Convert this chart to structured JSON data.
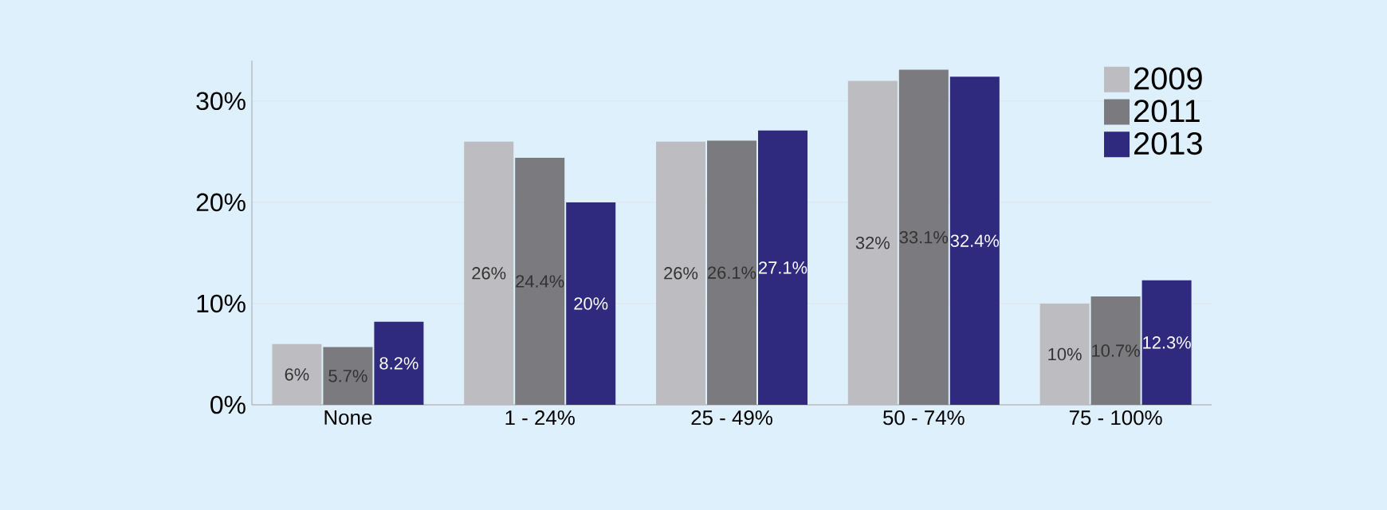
{
  "chart_data": {
    "type": "bar",
    "categories": [
      "None",
      "1 - 24%",
      "25 - 49%",
      "50 - 74%",
      "75 - 100%"
    ],
    "series": [
      {
        "name": "2009",
        "color": "#bdbdc1",
        "values": [
          6,
          26,
          26,
          32,
          10
        ],
        "value_labels": [
          "6%",
          "26%",
          "26%",
          "32%",
          "10%"
        ]
      },
      {
        "name": "2011",
        "color": "#7b7b7f",
        "values": [
          5.7,
          24.4,
          26.1,
          33.1,
          10.7
        ],
        "value_labels": [
          "5.7%",
          "24.4%",
          "26.1%",
          "33.1%",
          "10.7%"
        ]
      },
      {
        "name": "2013",
        "color": "#2f2a7d",
        "values": [
          8.2,
          20,
          27.1,
          32.4,
          12.3
        ],
        "value_labels": [
          "8.2%",
          "20%",
          "27.1%",
          "32.4%",
          "12.3%"
        ]
      }
    ],
    "ylim": [
      0,
      34
    ],
    "yticks": [
      {
        "value": 0,
        "label": "0%"
      },
      {
        "value": 10,
        "label": "10%"
      },
      {
        "value": 20,
        "label": "20%"
      },
      {
        "value": 30,
        "label": "30%"
      }
    ],
    "grid": "y",
    "legend": "top right"
  }
}
